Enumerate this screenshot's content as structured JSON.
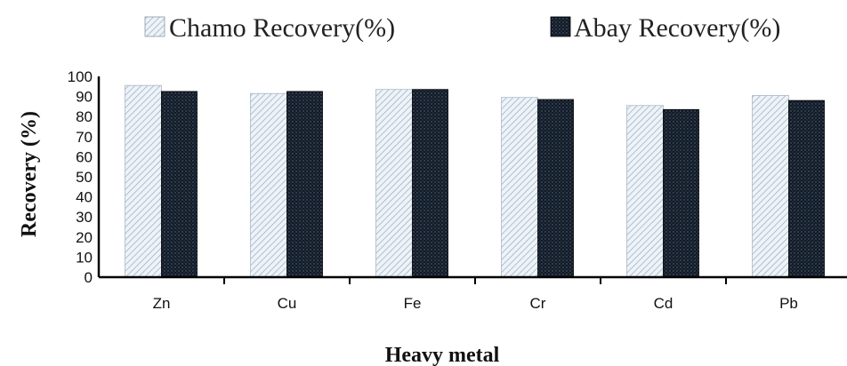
{
  "chart_data": {
    "type": "bar",
    "categories": [
      "Zn",
      "Cu",
      "Fe",
      "Cr",
      "Cd",
      "Pb"
    ],
    "series": [
      {
        "name": "Chamo Recovery(%)",
        "values": [
          95.5,
          91.5,
          93.5,
          89.5,
          85.5,
          90.5
        ],
        "color": "#dfe9f1"
      },
      {
        "name": "Abay Recovery(%)",
        "values": [
          92.5,
          92.5,
          93.5,
          88.5,
          83.5,
          88.0
        ],
        "color": "#141d2b"
      }
    ],
    "title": "",
    "xlabel": "Heavy metal",
    "ylabel": "Recovery (%)",
    "ylim": [
      0,
      100
    ],
    "yticks": [
      "0",
      "10",
      "20",
      "30",
      "40",
      "50",
      "60",
      "70",
      "80",
      "90",
      "100"
    ],
    "grid": false,
    "legend_position": "top"
  }
}
